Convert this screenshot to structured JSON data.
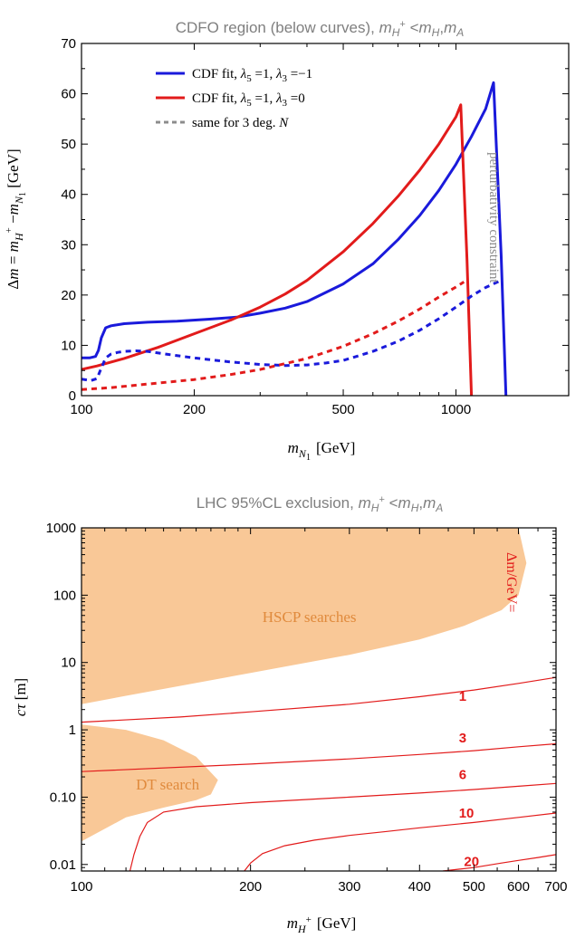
{
  "chart_data": [
    {
      "type": "line",
      "title": "CDFO region (below curves), m_{H⁺} < m_H, m_A",
      "title_parts": {
        "prefix": "CDFO region (below curves), ",
        "m1": "m",
        "m1_sub": "H",
        "m1_sup": "+",
        "lt": " <",
        "m2": "m",
        "m2_sub": "H",
        "comma": ",",
        "m3": "m",
        "m3_sub": "A"
      },
      "xlabel": "m_{N1} [GeV]",
      "xlabel_parts": {
        "m": "m",
        "sub": "N",
        "subsub": "1",
        "unit": "[GeV]"
      },
      "ylabel": "Δm = m_{H⁺} − m_{N1} [GeV]",
      "ylabel_parts": {
        "a": "Δ",
        "b": "m",
        "eq": " = ",
        "c": "m",
        "c_sub": "H",
        "c_sup": "+",
        "minus": " −",
        "d": "m",
        "d_sub": "N",
        "d_subsub": "1",
        "unit": " [GeV]"
      },
      "x_scale": "log",
      "xlim": [
        100,
        2000
      ],
      "ylim": [
        0,
        70
      ],
      "x_ticks": [
        100,
        200,
        500,
        1000
      ],
      "x_tick_labels": [
        "100",
        "200",
        "500",
        "1000"
      ],
      "y_ticks": [
        0,
        10,
        20,
        30,
        40,
        50,
        60,
        70
      ],
      "y_tick_labels": [
        "0",
        "10",
        "20",
        "30",
        "40",
        "50",
        "60",
        "70"
      ],
      "legend_position": "top-left",
      "legend": [
        {
          "text": "CDF fit, λ5 =1, λ3 =−1",
          "prefix": "CDF fit, ",
          "l1": "λ",
          "l1_sub": "5",
          "v1": " =1, ",
          "l2": "λ",
          "l2_sub": "3",
          "v2": " =−1",
          "color": "#1a1adb",
          "dash": "solid"
        },
        {
          "text": "CDF fit, λ5 =1, λ3 =0",
          "prefix": "CDF fit, ",
          "l1": "λ",
          "l1_sub": "5",
          "v1": " =1, ",
          "l2": "λ",
          "l2_sub": "3",
          "v2": " =0",
          "color": "#e21b1b",
          "dash": "solid"
        },
        {
          "text": "same for 3 deg. N",
          "prefix": "same for 3 deg. ",
          "em": "N",
          "color": "#8c8c8c",
          "dash": "dashed"
        }
      ],
      "annotation": "perturbativity constraint",
      "colors": {
        "blue": "#1a1adb",
        "red": "#e21b1b",
        "gray": "#8c8c8c",
        "axis": "#000000",
        "title": "#7f7f7f"
      },
      "series": [
        {
          "id": "blue-solid",
          "color": "#1a1adb",
          "dash": "solid",
          "x": [
            100,
            105,
            109,
            111,
            113,
            116,
            120,
            130,
            150,
            180,
            220,
            260,
            300,
            350,
            400,
            500,
            600,
            700,
            800,
            900,
            1000,
            1100,
            1200,
            1260,
            1320,
            1360
          ],
          "y": [
            7.5,
            7.5,
            7.8,
            9,
            11.5,
            13.5,
            13.9,
            14.3,
            14.6,
            14.8,
            15.2,
            15.6,
            16.4,
            17.4,
            18.7,
            22.2,
            26.2,
            31.0,
            35.8,
            40.8,
            46.0,
            51.5,
            57.0,
            62.2,
            28,
            0
          ]
        },
        {
          "id": "red-solid",
          "color": "#e21b1b",
          "dash": "solid",
          "x": [
            100,
            110,
            130,
            160,
            200,
            250,
            300,
            350,
            400,
            500,
            600,
            700,
            800,
            900,
            1000,
            1030,
            1070,
            1100
          ],
          "y": [
            5.2,
            5.9,
            7.4,
            9.6,
            12.3,
            15.0,
            17.6,
            20.2,
            22.9,
            28.6,
            34.2,
            39.6,
            44.8,
            50.0,
            55.4,
            57.8,
            27,
            0
          ]
        },
        {
          "id": "blue-dashed",
          "color": "#1a1adb",
          "dash": "dashed",
          "x": [
            100,
            106,
            110,
            113,
            116,
            120,
            125,
            130,
            140,
            150,
            170,
            200,
            250,
            300,
            350,
            400,
            450,
            500,
            600,
            700,
            800,
            900,
            1000,
            1100,
            1200,
            1300
          ],
          "y": [
            3.3,
            3.0,
            3.4,
            5.5,
            7.5,
            8.3,
            8.6,
            8.8,
            8.9,
            8.8,
            8.2,
            7.5,
            6.7,
            6.2,
            6.0,
            6.1,
            6.5,
            7.0,
            8.8,
            10.8,
            13.0,
            15.3,
            17.6,
            19.8,
            21.5,
            22.7
          ]
        },
        {
          "id": "red-dashed",
          "color": "#e21b1b",
          "dash": "dashed",
          "x": [
            100,
            120,
            150,
            200,
            250,
            300,
            400,
            500,
            600,
            700,
            800,
            900,
            1000,
            1050
          ],
          "y": [
            1.2,
            1.6,
            2.3,
            3.2,
            4.2,
            5.2,
            7.4,
            9.8,
            12.3,
            14.8,
            17.2,
            19.6,
            21.6,
            22.6
          ]
        }
      ]
    },
    {
      "type": "area",
      "title": "LHC 95%CL exclusion, m_{H⁺} < m_H, m_A",
      "title_parts": {
        "prefix": "LHC 95%CL exclusion, ",
        "m1": "m",
        "m1_sub": "H",
        "m1_sup": "+",
        "lt": " <",
        "m2": "m",
        "m2_sub": "H",
        "comma": ",",
        "m3": "m",
        "m3_sub": "A"
      },
      "xlabel": "m_{H⁺} [GeV]",
      "xlabel_parts": {
        "m": "m",
        "sub": "H",
        "sup": "+",
        "unit": "[GeV]"
      },
      "ylabel": "cτ [m]",
      "ylabel_parts": {
        "c": "c",
        "tau": "τ",
        "unit": " [m]"
      },
      "x_scale": "log",
      "y_scale": "log",
      "xlim": [
        100,
        700
      ],
      "ylim": [
        0.008,
        1000
      ],
      "x_ticks": [
        100,
        200,
        300,
        400,
        500,
        600,
        700
      ],
      "x_tick_labels": [
        "100",
        "200",
        "300",
        "400",
        "500",
        "600",
        "700"
      ],
      "y_ticks": [
        0.01,
        0.1,
        1,
        10,
        100,
        1000
      ],
      "y_tick_labels": [
        "0.01",
        "0.10",
        "1",
        "10",
        "100",
        "1000"
      ],
      "fill_color": "#f9c897",
      "line_color": "#e21b1b",
      "label_color": "#e08a3c",
      "regions": [
        {
          "id": "hscp",
          "label": "HSCP searches",
          "outline": [
            [
              100,
              1000
            ],
            [
              520,
              1000
            ],
            [
              600,
              1000
            ],
            [
              620,
              300
            ],
            [
              600,
              100
            ],
            [
              560,
              60
            ],
            [
              480,
              35
            ],
            [
              400,
              22
            ],
            [
              300,
              13
            ],
            [
              200,
              7
            ],
            [
              150,
              4.5
            ],
            [
              120,
              3.2
            ],
            [
              100,
              2.4
            ]
          ],
          "label_at": [
            210,
            40
          ]
        },
        {
          "id": "dt",
          "label": "DT search",
          "outline": [
            [
              100,
              1.2
            ],
            [
              120,
              1.0
            ],
            [
              140,
              0.7
            ],
            [
              160,
              0.4
            ],
            [
              175,
              0.18
            ],
            [
              170,
              0.11
            ],
            [
              160,
              0.09
            ],
            [
              140,
              0.07
            ],
            [
              120,
              0.05
            ],
            [
              100,
              0.022
            ]
          ],
          "label_at": [
            125,
            0.13
          ]
        }
      ],
      "contours_title": "Δm/GeV=",
      "contours": [
        {
          "label": "1",
          "label_at": [
            470,
            2.7
          ],
          "x": [
            100,
            150,
            200,
            300,
            400,
            500,
            600,
            700
          ],
          "y": [
            1.3,
            1.55,
            1.85,
            2.4,
            3.1,
            3.9,
            4.9,
            6.0
          ]
        },
        {
          "label": "3",
          "label_at": [
            470,
            0.65
          ],
          "x": [
            100,
            200,
            300,
            400,
            500,
            600,
            700
          ],
          "y": [
            0.24,
            0.31,
            0.37,
            0.43,
            0.49,
            0.56,
            0.62
          ]
        },
        {
          "label": "6",
          "label_at": [
            470,
            0.185
          ],
          "x": [
            122,
            124,
            127,
            131,
            140,
            160,
            200,
            300,
            400,
            500,
            600,
            700
          ],
          "y": [
            0.008,
            0.014,
            0.026,
            0.042,
            0.06,
            0.072,
            0.083,
            0.1,
            0.115,
            0.13,
            0.145,
            0.16
          ]
        },
        {
          "label": "10",
          "label_at": [
            470,
            0.05
          ],
          "x": [
            195,
            200,
            210,
            230,
            260,
            300,
            350,
            400,
            500,
            600,
            700
          ],
          "y": [
            0.008,
            0.0105,
            0.0145,
            0.019,
            0.023,
            0.027,
            0.031,
            0.035,
            0.042,
            0.05,
            0.058
          ]
        },
        {
          "label": "20",
          "label_at": [
            480,
            0.0095
          ],
          "x": [
            440,
            470,
            500,
            560,
            600,
            650,
            700
          ],
          "y": [
            0.008,
            0.0085,
            0.009,
            0.0105,
            0.0115,
            0.0127,
            0.014
          ]
        }
      ]
    }
  ]
}
